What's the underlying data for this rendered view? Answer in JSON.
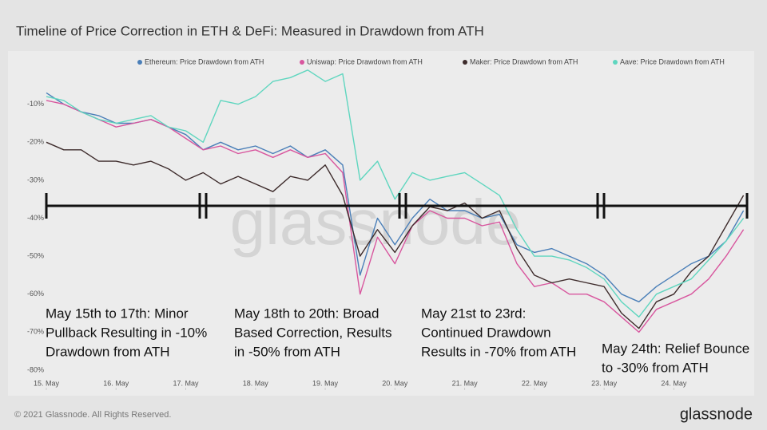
{
  "chart_data": {
    "type": "line",
    "title": "Timeline of Price Correction in ETH & DeFi: Measured in Drawdown from ATH",
    "watermark": "glassnode",
    "footer": "© 2021 Glassnode. All Rights Reserved.",
    "brand": "glassnode",
    "x": [
      15,
      15.25,
      15.5,
      15.75,
      16,
      16.25,
      16.5,
      16.75,
      17,
      17.25,
      17.5,
      17.75,
      18,
      18.25,
      18.5,
      18.75,
      19,
      19.25,
      19.5,
      19.75,
      20,
      20.25,
      20.5,
      20.75,
      21,
      21.25,
      21.5,
      21.75,
      22,
      22.25,
      22.5,
      22.75,
      23,
      23.25,
      23.5,
      23.75,
      24,
      24.25,
      24.5,
      24.75,
      25
    ],
    "xlim": [
      15,
      25.05
    ],
    "xticks": [
      {
        "value": 15,
        "label": "15. May"
      },
      {
        "value": 16,
        "label": "16. May"
      },
      {
        "value": 17,
        "label": "17. May"
      },
      {
        "value": 18,
        "label": "18. May"
      },
      {
        "value": 19,
        "label": "19. May"
      },
      {
        "value": 20,
        "label": "20. May"
      },
      {
        "value": 21,
        "label": "21. May"
      },
      {
        "value": 22,
        "label": "22. May"
      },
      {
        "value": 23,
        "label": "23. May"
      },
      {
        "value": 24,
        "label": "24. May"
      }
    ],
    "ylim": [
      -82,
      2
    ],
    "yticks": [
      {
        "value": -10,
        "label": "-10%"
      },
      {
        "value": -20,
        "label": "-20%"
      },
      {
        "value": -30,
        "label": "-30%"
      },
      {
        "value": -40,
        "label": "-40%"
      },
      {
        "value": -50,
        "label": "-50%"
      },
      {
        "value": -60,
        "label": "-60%"
      },
      {
        "value": -70,
        "label": "-70%"
      },
      {
        "value": -80,
        "label": "-80%"
      }
    ],
    "series": [
      {
        "name": "Ethereum: Price Drawdown from ATH",
        "color": "#4a7fb8",
        "values": [
          -7,
          -10,
          -12,
          -13,
          -15,
          -15,
          -14,
          -16,
          -18,
          -22,
          -20,
          -22,
          -21,
          -23,
          -21,
          -24,
          -22,
          -26,
          -55,
          -40,
          -47,
          -40,
          -35,
          -38,
          -38,
          -40,
          -39,
          -47,
          -49,
          -48,
          -50,
          -52,
          -55,
          -60,
          -62,
          -58,
          -55,
          -52,
          -50,
          -46,
          -38
        ]
      },
      {
        "name": "Uniswap: Price Drawdown from ATH",
        "color": "#d8569e",
        "values": [
          -9,
          -10,
          -12,
          -14,
          -16,
          -15,
          -14,
          -16,
          -19,
          -22,
          -21,
          -23,
          -22,
          -24,
          -22,
          -24,
          -23,
          -28,
          -60,
          -45,
          -52,
          -42,
          -38,
          -40,
          -40,
          -42,
          -41,
          -52,
          -58,
          -57,
          -60,
          -60,
          -62,
          -66,
          -70,
          -64,
          -62,
          -60,
          -56,
          -50,
          -43
        ]
      },
      {
        "name": "Maker: Price Drawdown from ATH",
        "color": "#3d2b2b",
        "values": [
          -20,
          -22,
          -22,
          -25,
          -25,
          -26,
          -25,
          -27,
          -30,
          -28,
          -31,
          -29,
          -31,
          -33,
          -29,
          -30,
          -26,
          -34,
          -50,
          -43,
          -49,
          -42,
          -37,
          -38,
          -36,
          -40,
          -38,
          -48,
          -55,
          -57,
          -56,
          -57,
          -58,
          -65,
          -69,
          -62,
          -60,
          -54,
          -50,
          -42,
          -34
        ]
      },
      {
        "name": "Aave: Price Drawdown from ATH",
        "color": "#5fd6bf",
        "values": [
          -8,
          -9,
          -12,
          -14,
          -15,
          -14,
          -13,
          -16,
          -17,
          -20,
          -9,
          -10,
          -8,
          -4,
          -3,
          -1,
          -4,
          -2,
          -30,
          -25,
          -35,
          -28,
          -30,
          -29,
          -28,
          -31,
          -34,
          -43,
          -50,
          -50,
          -51,
          -53,
          -56,
          -62,
          -66,
          -60,
          -58,
          -56,
          -51,
          -46,
          -40
        ]
      }
    ],
    "annotations": [
      [
        "May 15th to 17th: Minor",
        "Pullback Resulting in -10%",
        "Drawdown from ATH"
      ],
      [
        "May 18th to 20th: Broad",
        "Based Correction, Results",
        "in -50% from ATH"
      ],
      [
        "May 21st to 23rd:",
        "Continued Drawdown",
        "Results in -70% from ATH"
      ],
      [
        "May 24th: Relief Bounce",
        "to -30% from ATH"
      ]
    ]
  }
}
